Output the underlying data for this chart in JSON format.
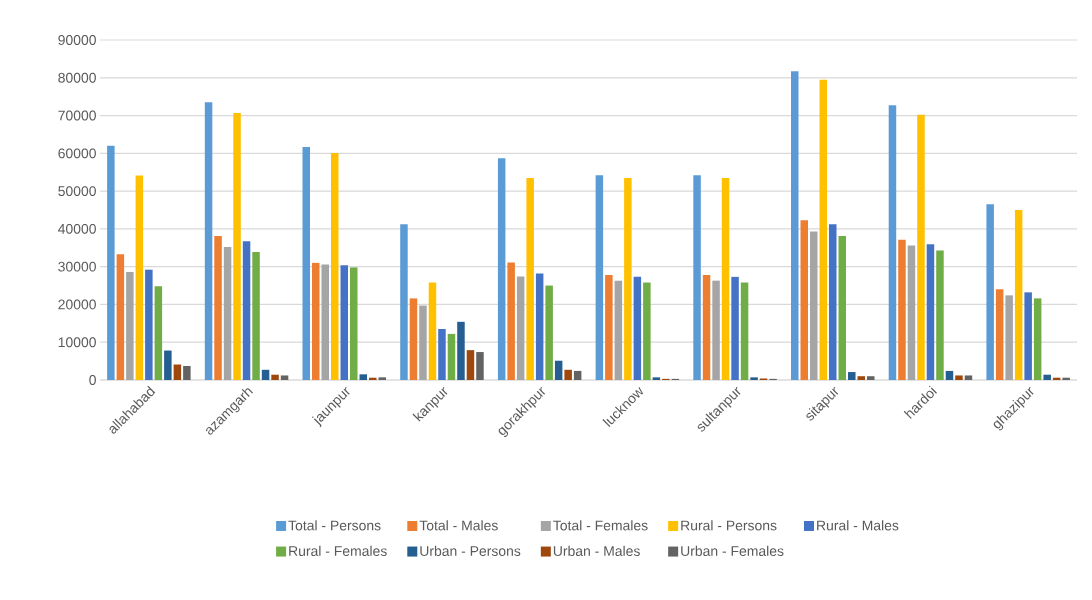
{
  "chart_data": {
    "type": "bar",
    "categories": [
      "allahabad",
      "azamgarh",
      "jaunpur",
      "kanpur",
      "gorakhpur",
      "lucknow",
      "sultanpur",
      "sitapur",
      "hardoi",
      "ghazipur"
    ],
    "series": [
      {
        "name": "Total - Persons",
        "color": "#5b9bd5",
        "values": [
          62000,
          73500,
          61700,
          41200,
          58700,
          54200,
          54200,
          81700,
          72700,
          46500
        ]
      },
      {
        "name": "Total - Males",
        "color": "#ed7d31",
        "values": [
          33300,
          38100,
          31000,
          21600,
          31100,
          27800,
          27800,
          42300,
          37100,
          24000
        ]
      },
      {
        "name": "Total - Females",
        "color": "#a5a5a5",
        "values": [
          28600,
          35200,
          30600,
          19700,
          27400,
          26300,
          26300,
          39300,
          35600,
          22400
        ]
      },
      {
        "name": "Rural - Persons",
        "color": "#ffc000",
        "values": [
          54100,
          70700,
          60100,
          25800,
          53500,
          53500,
          53500,
          79500,
          70200,
          45000
        ]
      },
      {
        "name": "Rural - Males",
        "color": "#4472c4",
        "values": [
          29200,
          36700,
          30400,
          13500,
          28200,
          27300,
          27300,
          41200,
          35900,
          23200
        ]
      },
      {
        "name": "Rural - Females",
        "color": "#70ad47",
        "values": [
          24800,
          33900,
          29800,
          12200,
          25000,
          25800,
          25800,
          38100,
          34300,
          21600
        ]
      },
      {
        "name": "Urban - Persons",
        "color": "#255e91",
        "values": [
          7800,
          2700,
          1500,
          15400,
          5100,
          700,
          700,
          2100,
          2400,
          1400
        ]
      },
      {
        "name": "Urban - Males",
        "color": "#9e480e",
        "values": [
          4100,
          1400,
          600,
          7900,
          2700,
          300,
          400,
          1000,
          1200,
          600
        ]
      },
      {
        "name": "Urban - Females",
        "color": "#636363",
        "values": [
          3700,
          1200,
          700,
          7400,
          2400,
          300,
          300,
          1000,
          1200,
          600
        ]
      }
    ],
    "ylim": [
      0,
      90000
    ],
    "yticks": [
      0,
      10000,
      20000,
      30000,
      40000,
      50000,
      60000,
      70000,
      80000,
      90000
    ],
    "grid": "y",
    "legend": "bottom"
  }
}
